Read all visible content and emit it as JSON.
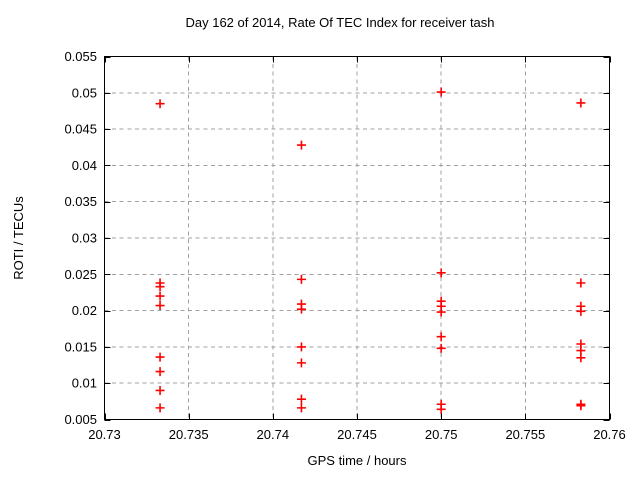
{
  "figure": {
    "background": "#ffffff",
    "border_color": "#000000",
    "grid_color": "#a0a0a0"
  },
  "chart_data": {
    "type": "scatter",
    "title": "Day 162 of 2014, Rate Of TEC Index for receiver tash",
    "xlabel": "GPS time / hours",
    "ylabel": "ROTI / TECUs",
    "xlim": [
      20.73,
      20.76
    ],
    "ylim": [
      0.005,
      0.055
    ],
    "xticks": [
      20.73,
      20.735,
      20.74,
      20.745,
      20.75,
      20.755,
      20.76
    ],
    "xtick_labels": [
      "20.73",
      "20.735",
      "20.74",
      "20.745",
      "20.75",
      "20.755",
      "20.76"
    ],
    "yticks": [
      0.005,
      0.01,
      0.015,
      0.02,
      0.025,
      0.03,
      0.035,
      0.04,
      0.045,
      0.05,
      0.055
    ],
    "ytick_labels": [
      "0.005",
      "0.01",
      "0.015",
      "0.02",
      "0.025",
      "0.03",
      "0.035",
      "0.04",
      "0.045",
      "0.05",
      "0.055"
    ],
    "grid": true,
    "legend": "none",
    "marker": {
      "shape": "plus",
      "color": "#ff0000",
      "size": 9
    },
    "series": [
      {
        "points": [
          [
            20.7333,
            0.0485
          ],
          [
            20.7333,
            0.0238
          ],
          [
            20.7333,
            0.0233
          ],
          [
            20.7333,
            0.022
          ],
          [
            20.7333,
            0.0207
          ],
          [
            20.7333,
            0.0136
          ],
          [
            20.7333,
            0.0116
          ],
          [
            20.7333,
            0.009
          ],
          [
            20.7333,
            0.0066
          ],
          [
            20.7417,
            0.0428
          ],
          [
            20.7417,
            0.0243
          ],
          [
            20.7417,
            0.0209
          ],
          [
            20.7417,
            0.0202
          ],
          [
            20.7417,
            0.015
          ],
          [
            20.7417,
            0.0128
          ],
          [
            20.7417,
            0.0078
          ],
          [
            20.7417,
            0.0066
          ],
          [
            20.75,
            0.0501
          ],
          [
            20.75,
            0.0252
          ],
          [
            20.75,
            0.0213
          ],
          [
            20.75,
            0.0206
          ],
          [
            20.75,
            0.0198
          ],
          [
            20.75,
            0.0164
          ],
          [
            20.75,
            0.0148
          ],
          [
            20.75,
            0.0071
          ],
          [
            20.75,
            0.0064
          ],
          [
            20.7583,
            0.0486
          ],
          [
            20.7583,
            0.0238
          ],
          [
            20.7583,
            0.0206
          ],
          [
            20.7583,
            0.0199
          ],
          [
            20.7583,
            0.0154
          ],
          [
            20.7583,
            0.0145
          ],
          [
            20.7583,
            0.0135
          ],
          [
            20.7583,
            0.0071
          ],
          [
            20.7583,
            0.0069
          ]
        ]
      }
    ]
  }
}
